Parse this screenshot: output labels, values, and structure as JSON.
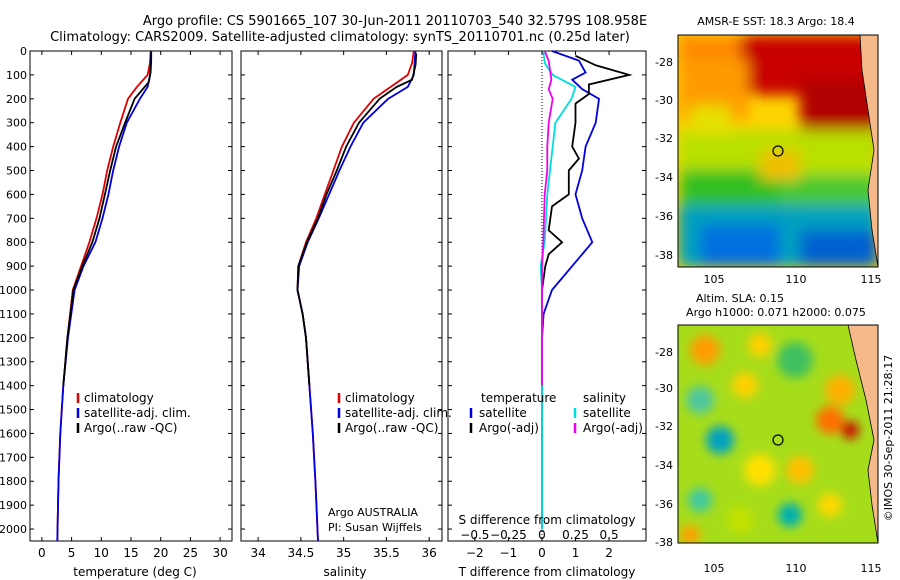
{
  "header": {
    "title_line1": "Argo profile: CS 5901665_107 30-Jun-2011 20110703_540 32.579S 108.958E",
    "title_line2": "Climatology: CARS2009. Satellite-adjusted climatology: synTS_20110701.nc (0.25d later)"
  },
  "colors": {
    "climatology": "#e00000",
    "satellite": "#0000e0",
    "argo": "#000000",
    "sat_salinity": "#00dddd",
    "argo_salinity": "#ee00ee"
  },
  "chart_data": [
    {
      "type": "line",
      "name": "temperature",
      "xlabel": "temperature (deg C)",
      "ylabel": "",
      "xlim": [
        -2,
        32
      ],
      "ylim": [
        2050,
        0
      ],
      "xticks": [
        0,
        5,
        10,
        15,
        20,
        25,
        30
      ],
      "yticks": [
        0,
        100,
        200,
        300,
        400,
        500,
        600,
        700,
        800,
        900,
        1000,
        1100,
        1200,
        1300,
        1400,
        1500,
        1600,
        1700,
        1800,
        1900,
        2000
      ],
      "legend": [
        "climatology",
        "satellite-adj. clim.",
        "Argo(..raw -QC)"
      ],
      "series": [
        {
          "name": "climatology",
          "color": "climatology",
          "points": [
            [
              18.3,
              0
            ],
            [
              18.2,
              50
            ],
            [
              17.8,
              100
            ],
            [
              16.0,
              150
            ],
            [
              14.5,
              200
            ],
            [
              13.2,
              300
            ],
            [
              12.0,
              400
            ],
            [
              11.0,
              500
            ],
            [
              10.2,
              600
            ],
            [
              9.2,
              700
            ],
            [
              8.0,
              800
            ],
            [
              6.6,
              900
            ],
            [
              5.2,
              1000
            ],
            [
              4.3,
              1200
            ],
            [
              3.6,
              1400
            ],
            [
              3.1,
              1600
            ],
            [
              2.8,
              1800
            ],
            [
              2.6,
              2050
            ]
          ]
        },
        {
          "name": "satellite-adj. clim.",
          "color": "satellite",
          "points": [
            [
              18.4,
              0
            ],
            [
              18.3,
              50
            ],
            [
              18.2,
              100
            ],
            [
              17.8,
              150
            ],
            [
              16.5,
              200
            ],
            [
              14.3,
              300
            ],
            [
              13.0,
              400
            ],
            [
              12.0,
              500
            ],
            [
              11.2,
              600
            ],
            [
              10.2,
              700
            ],
            [
              9.0,
              800
            ],
            [
              7.0,
              900
            ],
            [
              5.5,
              1000
            ],
            [
              4.4,
              1200
            ],
            [
              3.6,
              1400
            ],
            [
              3.1,
              1600
            ],
            [
              2.8,
              1800
            ],
            [
              2.6,
              2050
            ]
          ]
        },
        {
          "name": "Argo(..raw -QC)",
          "color": "argo",
          "points": [
            [
              18.4,
              5
            ],
            [
              18.4,
              40
            ],
            [
              18.3,
              90
            ],
            [
              18.0,
              130
            ],
            [
              15.6,
              200
            ],
            [
              14.0,
              300
            ],
            [
              12.5,
              400
            ],
            [
              11.5,
              500
            ],
            [
              10.6,
              600
            ],
            [
              9.7,
              700
            ],
            [
              8.5,
              800
            ],
            [
              6.8,
              900
            ],
            [
              5.3,
              1000
            ],
            [
              4.3,
              1200
            ],
            [
              3.6,
              1400
            ]
          ]
        }
      ]
    },
    {
      "type": "line",
      "name": "salinity",
      "xlabel": "salinity",
      "xlim": [
        33.8,
        36.15
      ],
      "ylim": [
        2050,
        0
      ],
      "xticks": [
        34,
        34.5,
        35,
        35.5,
        36
      ],
      "legend": [
        "climatology",
        "satellite-adj. clim.",
        "Argo(..raw -QC)"
      ],
      "annotation": [
        "Argo AUSTRALIA",
        "PI: Susan Wijffels"
      ],
      "series": [
        {
          "name": "climatology",
          "color": "climatology",
          "points": [
            [
              35.82,
              0
            ],
            [
              35.8,
              50
            ],
            [
              35.75,
              100
            ],
            [
              35.55,
              150
            ],
            [
              35.35,
              200
            ],
            [
              35.12,
              300
            ],
            [
              34.98,
              400
            ],
            [
              34.88,
              500
            ],
            [
              34.78,
              600
            ],
            [
              34.68,
              700
            ],
            [
              34.56,
              800
            ],
            [
              34.47,
              900
            ],
            [
              34.46,
              1000
            ],
            [
              34.52,
              1100
            ],
            [
              34.56,
              1200
            ],
            [
              34.6,
              1400
            ],
            [
              34.64,
              1600
            ],
            [
              34.67,
              1800
            ],
            [
              34.7,
              2050
            ]
          ]
        },
        {
          "name": "satellite-adj. clim.",
          "color": "satellite",
          "points": [
            [
              35.84,
              0
            ],
            [
              35.83,
              50
            ],
            [
              35.82,
              100
            ],
            [
              35.75,
              150
            ],
            [
              35.52,
              200
            ],
            [
              35.23,
              300
            ],
            [
              35.08,
              400
            ],
            [
              34.95,
              500
            ],
            [
              34.83,
              600
            ],
            [
              34.71,
              700
            ],
            [
              34.58,
              800
            ],
            [
              34.48,
              900
            ],
            [
              34.46,
              1000
            ],
            [
              34.52,
              1100
            ],
            [
              34.56,
              1200
            ],
            [
              34.6,
              1400
            ],
            [
              34.64,
              1600
            ],
            [
              34.67,
              1800
            ],
            [
              34.7,
              2050
            ]
          ]
        },
        {
          "name": "Argo(..raw -QC)",
          "color": "argo",
          "points": [
            [
              35.85,
              10
            ],
            [
              35.84,
              60
            ],
            [
              35.8,
              120
            ],
            [
              35.62,
              150
            ],
            [
              35.42,
              200
            ],
            [
              35.18,
              300
            ],
            [
              35.03,
              400
            ],
            [
              34.92,
              500
            ],
            [
              34.8,
              600
            ],
            [
              34.7,
              700
            ],
            [
              34.57,
              800
            ],
            [
              34.47,
              900
            ],
            [
              34.46,
              1000
            ],
            [
              34.52,
              1100
            ],
            [
              34.56,
              1200
            ],
            [
              34.6,
              1400
            ]
          ]
        }
      ]
    },
    {
      "type": "line",
      "name": "differences",
      "xlabel": "T difference from climatology",
      "xlabel_top": "S difference from climatology",
      "xlim": [
        -2.8,
        3.1
      ],
      "ylim": [
        2050,
        0
      ],
      "xticks": [
        -2,
        -1,
        0,
        1,
        2
      ],
      "xticks_s": [
        -0.5,
        -0.25,
        0,
        0.25,
        0.5
      ],
      "legend_left_title": "temperature",
      "legend_right_title": "salinity",
      "legend": [
        "satellite",
        "Argo(-adj)",
        "satellite",
        "Argo(-adj)"
      ],
      "series": [
        {
          "name": "T satellite",
          "color": "satellite",
          "points": [
            [
              0.3,
              0
            ],
            [
              1.1,
              40
            ],
            [
              1.3,
              90
            ],
            [
              0.9,
              120
            ],
            [
              1.2,
              160
            ],
            [
              1.7,
              200
            ],
            [
              1.6,
              300
            ],
            [
              1.3,
              400
            ],
            [
              1.2,
              500
            ],
            [
              1.0,
              600
            ],
            [
              1.2,
              700
            ],
            [
              1.5,
              800
            ],
            [
              0.9,
              900
            ],
            [
              0.3,
              1000
            ],
            [
              0.05,
              1100
            ],
            [
              0.0,
              1200
            ],
            [
              0.0,
              1400
            ],
            [
              0.0,
              2000
            ]
          ]
        },
        {
          "name": "T Argo(-adj)",
          "color": "argo",
          "points": [
            [
              1.0,
              20
            ],
            [
              1.6,
              60
            ],
            [
              2.6,
              100
            ],
            [
              1.4,
              140
            ],
            [
              1.4,
              180
            ],
            [
              1.0,
              220
            ],
            [
              1.0,
              300
            ],
            [
              0.9,
              400
            ],
            [
              1.1,
              450
            ],
            [
              0.8,
              500
            ],
            [
              0.8,
              600
            ],
            [
              0.3,
              650
            ],
            [
              0.2,
              750
            ],
            [
              0.6,
              800
            ],
            [
              0.2,
              850
            ],
            [
              0.1,
              900
            ],
            [
              0.0,
              1000
            ],
            [
              0.0,
              1400
            ]
          ]
        },
        {
          "name": "S satellite",
          "color": "sat_salinity",
          "points": [
            [
              0.01,
              0
            ],
            [
              0.02,
              50
            ],
            [
              0.08,
              100
            ],
            [
              0.25,
              150
            ],
            [
              0.22,
              200
            ],
            [
              0.1,
              300
            ],
            [
              0.08,
              400
            ],
            [
              0.06,
              500
            ],
            [
              0.04,
              600
            ],
            [
              0.03,
              700
            ],
            [
              0.02,
              800
            ],
            [
              -0.01,
              900
            ],
            [
              0.0,
              1000
            ],
            [
              0.0,
              1200
            ],
            [
              0.0,
              2000
            ]
          ]
        },
        {
          "name": "S Argo(-adj)",
          "color": "argo_salinity",
          "points": [
            [
              0.02,
              0
            ],
            [
              0.05,
              40
            ],
            [
              0.06,
              80
            ],
            [
              0.07,
              120
            ],
            [
              0.05,
              160
            ],
            [
              0.08,
              200
            ],
            [
              0.05,
              300
            ],
            [
              0.04,
              400
            ],
            [
              0.04,
              500
            ],
            [
              0.02,
              600
            ],
            [
              0.01,
              800
            ],
            [
              0.0,
              900
            ],
            [
              0.0,
              1000
            ],
            [
              0.0,
              1400
            ]
          ]
        }
      ]
    }
  ],
  "maps": {
    "top_title": "AMSR-E SST: 18.3 Argo: 18.4",
    "bottom_title_line1": "Altim. SLA: 0.15",
    "bottom_title_line2": "Argo h1000: 0.071 h2000: 0.075",
    "yticks": [
      "-28",
      "-30",
      "-32",
      "-34",
      "-36",
      "-38"
    ],
    "xticks": [
      "105",
      "110",
      "115"
    ],
    "argo_position": {
      "lon": 108.958,
      "lat": -32.579
    }
  },
  "credit": "©IMOS 30-Sep-2011 21:28:17"
}
